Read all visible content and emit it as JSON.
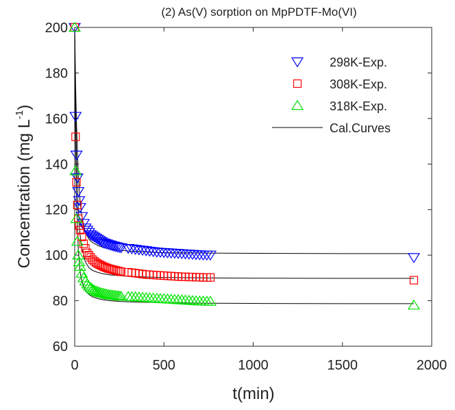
{
  "chart_data": {
    "type": "scatter",
    "title": "(2)  As(V) sorption on MpPDTF-Mo(VI)",
    "xlabel": "t(min)",
    "ylabel": "Concentration (mg L",
    "ylabel_sup": "-1",
    "ylabel_close": ")",
    "xlim": [
      0,
      2000
    ],
    "ylim": [
      60,
      200
    ],
    "xticks": [
      0,
      500,
      1000,
      1500,
      2000
    ],
    "yticks": [
      60,
      80,
      100,
      120,
      140,
      160,
      180,
      200
    ],
    "grid": false,
    "legend_position": "top-right",
    "series": [
      {
        "name": "298K-Exp.",
        "marker": "triangle-down",
        "color": "#0000ff",
        "x": [
          0,
          5,
          10,
          15,
          20,
          25,
          30,
          40,
          50,
          60,
          70,
          80,
          90,
          100,
          110,
          120,
          130,
          140,
          150,
          160,
          170,
          180,
          190,
          200,
          210,
          220,
          230,
          240,
          250,
          260,
          300,
          320,
          340,
          360,
          380,
          400,
          420,
          440,
          460,
          480,
          500,
          520,
          540,
          560,
          580,
          600,
          620,
          640,
          660,
          680,
          700,
          720,
          740,
          760,
          1900
        ],
        "y": [
          200,
          161,
          144,
          134,
          128,
          124,
          121,
          117,
          114,
          112,
          111,
          110,
          109,
          108.5,
          108,
          107.5,
          107,
          106.5,
          106,
          105.5,
          105.2,
          105,
          104.7,
          104.5,
          104.2,
          104,
          103.8,
          103.6,
          103.4,
          103.3,
          103,
          102.8,
          102.6,
          102.4,
          102.2,
          102,
          101.8,
          101.6,
          101.4,
          101.3,
          101.2,
          101.1,
          101,
          100.9,
          100.8,
          100.7,
          100.6,
          100.5,
          100.4,
          100.3,
          100.2,
          100.1,
          100.1,
          100.1,
          99
        ]
      },
      {
        "name": "308K-Exp.",
        "marker": "square",
        "color": "#ff0000",
        "x": [
          0,
          5,
          10,
          15,
          20,
          25,
          30,
          40,
          50,
          60,
          70,
          80,
          90,
          100,
          110,
          120,
          130,
          140,
          150,
          160,
          170,
          180,
          190,
          200,
          210,
          220,
          230,
          240,
          250,
          260,
          300,
          320,
          340,
          360,
          380,
          400,
          420,
          440,
          460,
          480,
          500,
          520,
          540,
          560,
          580,
          600,
          620,
          640,
          660,
          680,
          700,
          720,
          740,
          760,
          1900
        ],
        "y": [
          200,
          152,
          132,
          122,
          116,
          113,
          111,
          108,
          105,
          103,
          101,
          100,
          99,
          98,
          97.3,
          96.7,
          96.2,
          95.8,
          95.4,
          95,
          94.7,
          94.4,
          94.1,
          93.9,
          93.7,
          93.5,
          93.3,
          93.1,
          92.9,
          92.7,
          92.5,
          92.3,
          92.1,
          91.9,
          91.7,
          91.5,
          91.4,
          91.3,
          91.2,
          91.1,
          91,
          90.9,
          90.8,
          90.7,
          90.6,
          90.5,
          90.5,
          90.4,
          90.4,
          90.3,
          90.3,
          90.2,
          90.2,
          90.2,
          89
        ]
      },
      {
        "name": "318K-Exp.",
        "marker": "triangle-up",
        "color": "#00e400",
        "x": [
          0,
          5,
          10,
          15,
          20,
          25,
          30,
          40,
          50,
          60,
          70,
          80,
          90,
          100,
          110,
          120,
          130,
          140,
          150,
          160,
          170,
          180,
          190,
          200,
          210,
          220,
          230,
          240,
          250,
          260,
          300,
          320,
          340,
          360,
          380,
          400,
          420,
          440,
          460,
          480,
          500,
          520,
          540,
          560,
          580,
          600,
          620,
          640,
          660,
          680,
          700,
          720,
          740,
          760,
          1900
        ],
        "y": [
          200,
          137,
          116,
          106,
          100,
          97,
          95,
          92,
          90,
          88.5,
          87.3,
          86.4,
          85.7,
          85.1,
          84.6,
          84.2,
          83.9,
          83.6,
          83.4,
          83.2,
          83,
          82.8,
          82.6,
          82.5,
          82.4,
          82.3,
          82.2,
          82.1,
          82,
          81.9,
          81.8,
          81.7,
          81.6,
          81.5,
          81.4,
          81.3,
          81.2,
          81.1,
          81,
          80.9,
          80.8,
          80.7,
          80.6,
          80.5,
          80.4,
          80.3,
          80.2,
          80.1,
          80,
          79.9,
          79.8,
          79.8,
          79.7,
          79.7,
          78
        ]
      }
    ],
    "fit_curves": {
      "name": "Cal.Curves",
      "color": "#000000",
      "curves": [
        {
          "x": [
            0,
            5,
            10,
            20,
            30,
            40,
            60,
            80,
            100,
            130,
            160,
            200,
            250,
            300,
            400,
            500,
            600,
            760,
            1000,
            1500,
            1900
          ],
          "y": [
            200,
            175,
            158,
            136,
            124,
            117,
            110,
            107,
            105.5,
            104.2,
            103.4,
            102.7,
            102.2,
            101.8,
            101.4,
            101.1,
            101,
            100.9,
            100.8,
            100.7,
            100.7
          ]
        },
        {
          "x": [
            0,
            5,
            10,
            20,
            30,
            40,
            60,
            80,
            100,
            130,
            160,
            200,
            250,
            300,
            400,
            500,
            600,
            760,
            1000,
            1500,
            1900
          ],
          "y": [
            200,
            165,
            143,
            120,
            109,
            103,
            97,
            94.5,
            93.3,
            92.4,
            91.8,
            91.3,
            91,
            90.7,
            90.4,
            90.2,
            90.1,
            90,
            89.9,
            89.8,
            89.8
          ]
        },
        {
          "x": [
            0,
            5,
            10,
            20,
            30,
            40,
            60,
            80,
            100,
            130,
            160,
            200,
            250,
            300,
            400,
            500,
            600,
            760,
            1000,
            1500,
            1900
          ],
          "y": [
            200,
            150,
            125,
            103,
            93,
            88.5,
            84.5,
            82.7,
            81.7,
            80.9,
            80.4,
            80,
            79.7,
            79.5,
            79.3,
            79.1,
            79,
            78.9,
            78.8,
            78.7,
            78.7
          ]
        }
      ]
    }
  }
}
